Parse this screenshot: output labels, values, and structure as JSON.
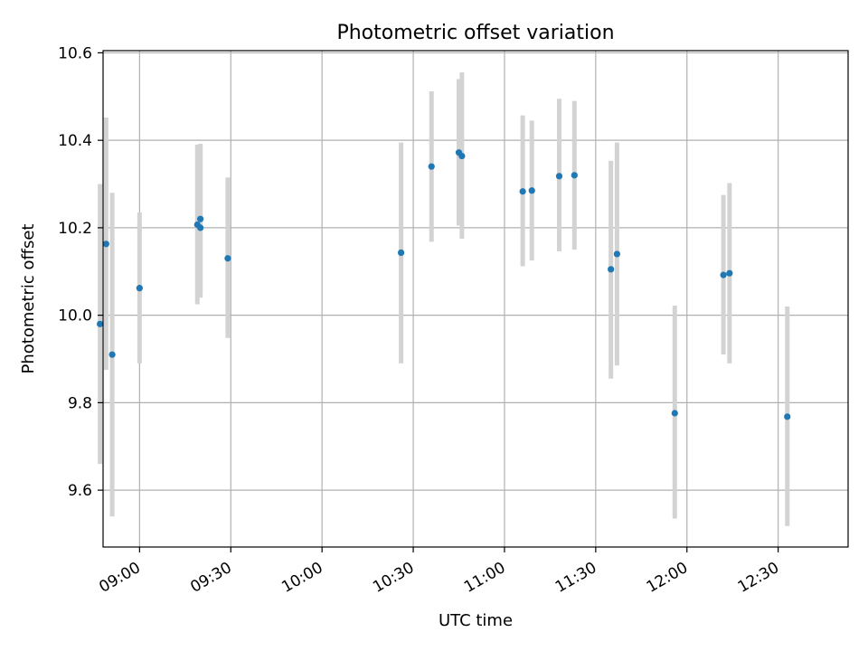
{
  "chart_data": {
    "type": "scatter",
    "title": "Photometric offset variation",
    "xlabel": "UTC time",
    "ylabel": "Photometric offset",
    "x_ticks": [
      "09:00",
      "09:30",
      "10:00",
      "10:30",
      "11:00",
      "11:30",
      "12:00",
      "12:30"
    ],
    "y_ticks": [
      "9.6",
      "9.8",
      "10.0",
      "10.2",
      "10.4",
      "10.6"
    ],
    "xlim": [
      "08:48",
      "12:53"
    ],
    "ylim": [
      9.47,
      10.605
    ],
    "grid": true,
    "legend": "none",
    "series": [
      {
        "errorbar_style": "vertical bars",
        "points": [
          {
            "x": "08:47",
            "y": 9.98,
            "ylow": 9.66,
            "yhigh": 10.3
          },
          {
            "x": "08:49",
            "y": 10.163,
            "ylow": 9.875,
            "yhigh": 10.452
          },
          {
            "x": "08:51",
            "y": 9.91,
            "ylow": 9.54,
            "yhigh": 10.28
          },
          {
            "x": "09:00",
            "y": 10.062,
            "ylow": 9.89,
            "yhigh": 10.235
          },
          {
            "x": "09:19",
            "y": 10.207,
            "ylow": 10.025,
            "yhigh": 10.39
          },
          {
            "x": "09:20",
            "y": 10.2,
            "ylow": 10.04,
            "yhigh": 10.39
          },
          {
            "x": "09:20",
            "y": 10.22,
            "ylow": 10.05,
            "yhigh": 10.392
          },
          {
            "x": "09:29",
            "y": 10.13,
            "ylow": 9.948,
            "yhigh": 10.315
          },
          {
            "x": "10:26",
            "y": 10.143,
            "ylow": 9.89,
            "yhigh": 10.395
          },
          {
            "x": "10:36",
            "y": 10.34,
            "ylow": 10.168,
            "yhigh": 10.512
          },
          {
            "x": "10:45",
            "y": 10.372,
            "ylow": 10.205,
            "yhigh": 10.54
          },
          {
            "x": "10:46",
            "y": 10.364,
            "ylow": 10.175,
            "yhigh": 10.555
          },
          {
            "x": "11:06",
            "y": 10.283,
            "ylow": 10.112,
            "yhigh": 10.457
          },
          {
            "x": "11:09",
            "y": 10.285,
            "ylow": 10.125,
            "yhigh": 10.445
          },
          {
            "x": "11:18",
            "y": 10.318,
            "ylow": 10.146,
            "yhigh": 10.495
          },
          {
            "x": "11:23",
            "y": 10.32,
            "ylow": 10.15,
            "yhigh": 10.49
          },
          {
            "x": "11:35",
            "y": 10.105,
            "ylow": 9.855,
            "yhigh": 10.353
          },
          {
            "x": "11:37",
            "y": 10.14,
            "ylow": 9.885,
            "yhigh": 10.395
          },
          {
            "x": "11:56",
            "y": 9.776,
            "ylow": 9.535,
            "yhigh": 10.022
          },
          {
            "x": "12:12",
            "y": 10.092,
            "ylow": 9.91,
            "yhigh": 10.275
          },
          {
            "x": "12:14",
            "y": 10.096,
            "ylow": 9.89,
            "yhigh": 10.302
          },
          {
            "x": "12:33",
            "y": 9.768,
            "ylow": 9.518,
            "yhigh": 10.02
          }
        ]
      }
    ],
    "colors": {
      "point": "#1f77b4",
      "errorbar": "#d3d3d3",
      "grid": "#b0b0b0",
      "axes": "#000000"
    }
  }
}
